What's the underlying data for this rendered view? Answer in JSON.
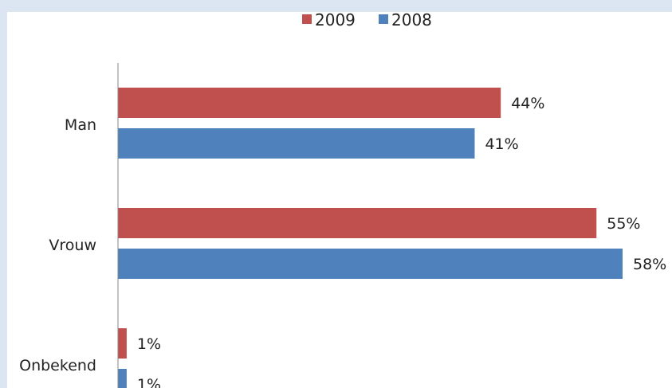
{
  "chart_data": {
    "type": "bar",
    "orientation": "horizontal",
    "categories": [
      "Man",
      "Vrouw",
      "Onbekend"
    ],
    "series": [
      {
        "name": "2009",
        "values": [
          44,
          55,
          1
        ],
        "labels": [
          "44%",
          "55%",
          "1%"
        ],
        "color": "#c0504d"
      },
      {
        "name": "2008",
        "values": [
          41,
          58,
          1
        ],
        "labels": [
          "41%",
          "58%",
          "1%"
        ],
        "color": "#4f81bd"
      }
    ],
    "value_unit": "%",
    "xlim": [
      0,
      63
    ],
    "grid": false,
    "legend_position": "top"
  }
}
